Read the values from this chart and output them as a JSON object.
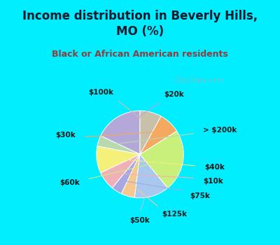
{
  "title": "Income distribution in Beverly Hills,\nMO (%)",
  "subtitle": "Black or African American residents",
  "labels": [
    "$20k",
    "> $200k",
    "$40k",
    "$10k",
    "$75k",
    "$125k",
    "$50k",
    "$60k",
    "$30k",
    "$100k"
  ],
  "values": [
    18,
    4,
    10,
    7,
    4,
    5,
    13,
    23,
    8,
    8
  ],
  "colors": [
    "#b3a8d8",
    "#b8d8b0",
    "#f5f07a",
    "#f0b0b8",
    "#a8a8e0",
    "#f5c890",
    "#a8c8f0",
    "#c8f07a",
    "#f5a860",
    "#c8c0a8"
  ],
  "startangle": 90,
  "bg_cyan": "#00eeff",
  "bg_chart_color": "#d8ede8",
  "title_color": "#1a1a2e",
  "subtitle_color": "#8b4040",
  "watermark": "City-Data.com",
  "label_color": "#1a1a1a",
  "line_colors": [
    "#b3a8d8",
    "#b8d8b0",
    "#f5f07a",
    "#f0b0b8",
    "#a8a8e0",
    "#f5c890",
    "#a8c8f0",
    "#c8f07a",
    "#f5a860",
    "#c8c0a8"
  ]
}
